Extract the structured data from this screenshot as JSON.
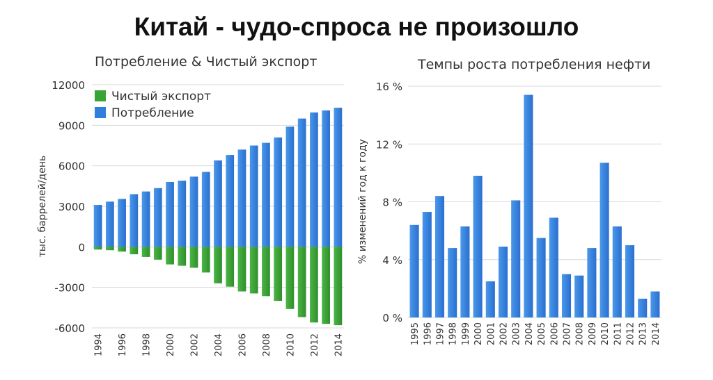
{
  "title": "Китай - чудо-спроса не произошло",
  "chart_data": [
    {
      "type": "bar",
      "title": "Потребление & Чистый экспорт",
      "ylabel": "тыс. баррелей/день",
      "xlabel": "",
      "ylim": [
        -6000,
        12000
      ],
      "yticks": [
        "12000",
        "9000",
        "6000",
        "3000",
        "0",
        "-3000",
        "-6000"
      ],
      "x": [
        1994,
        1995,
        1996,
        1997,
        1998,
        1999,
        2000,
        2001,
        2002,
        2003,
        2004,
        2005,
        2006,
        2007,
        2008,
        2009,
        2010,
        2011,
        2012,
        2013,
        2014
      ],
      "xtick_labels": [
        "1994",
        "1996",
        "1998",
        "2000",
        "2002",
        "2004",
        "2006",
        "2008",
        "2010",
        "2012",
        "2014"
      ],
      "legend_position": "top-left",
      "series": [
        {
          "name": "Чистый экспорт",
          "color": "#3aa336",
          "values": [
            -200,
            -250,
            -350,
            -550,
            -750,
            -950,
            -1300,
            -1400,
            -1550,
            -1900,
            -2700,
            -2950,
            -3300,
            -3450,
            -3650,
            -4000,
            -4600,
            -5200,
            -5600,
            -5700,
            -5800
          ]
        },
        {
          "name": "Потребление",
          "color": "#2f7fdc",
          "values": [
            3100,
            3350,
            3550,
            3900,
            4100,
            4350,
            4800,
            4900,
            5200,
            5550,
            6400,
            6800,
            7200,
            7500,
            7700,
            8100,
            8900,
            9500,
            9950,
            10100,
            10300
          ]
        }
      ]
    },
    {
      "type": "bar",
      "title": "Темпы роста потребления нефти",
      "ylabel": "% изменений год к году",
      "xlabel": "",
      "ylim": [
        0,
        16
      ],
      "yticks": [
        "16 %",
        "12 %",
        "8 %",
        "4 %",
        "0 %"
      ],
      "categories": [
        "1995",
        "1996",
        "1997",
        "1998",
        "1999",
        "2000",
        "2001",
        "2002",
        "2003",
        "2004",
        "2005",
        "2006",
        "2007",
        "2008",
        "2009",
        "2010",
        "2011",
        "2012",
        "2013",
        "2014"
      ],
      "series": [
        {
          "color": "#2f7fdc",
          "values": [
            6.4,
            7.3,
            8.4,
            4.8,
            6.3,
            9.8,
            2.5,
            4.9,
            8.1,
            15.4,
            5.5,
            6.9,
            3.0,
            2.9,
            4.8,
            10.7,
            6.3,
            5.0,
            1.3,
            1.8
          ]
        }
      ]
    }
  ]
}
